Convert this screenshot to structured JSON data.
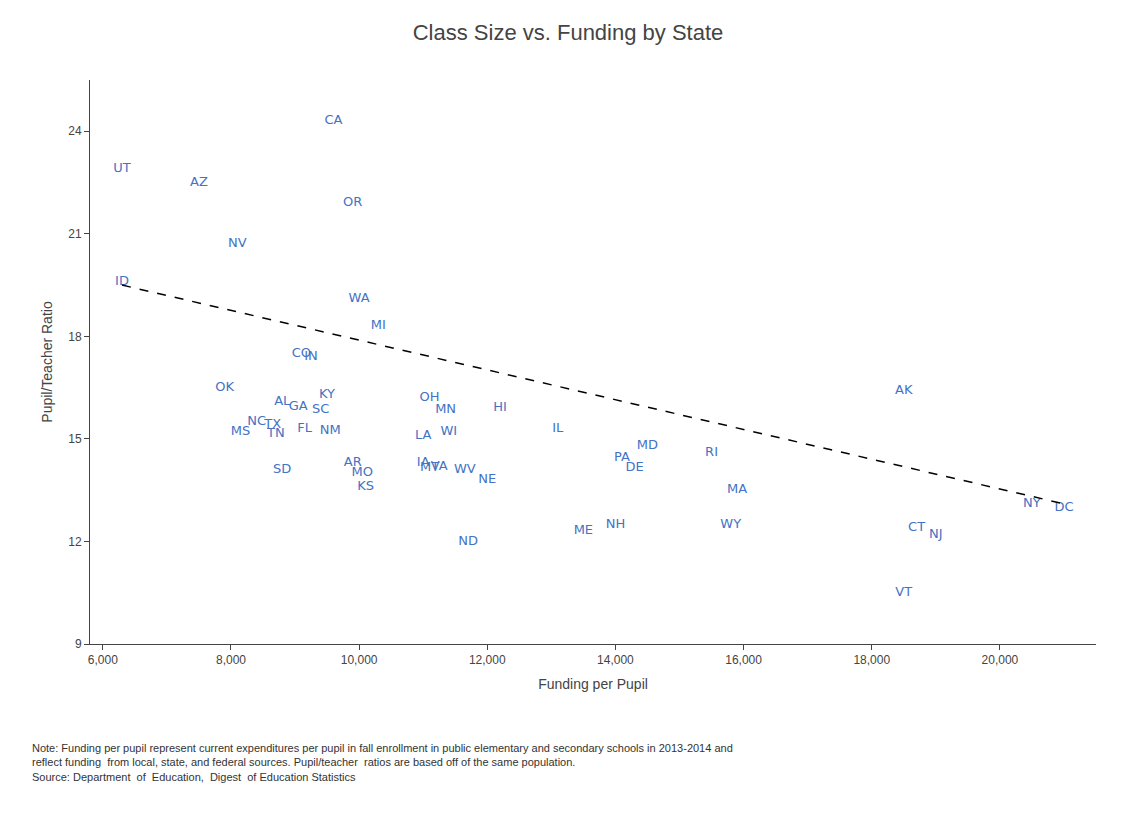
{
  "chart_data": {
    "type": "scatter",
    "title": "Class Size vs. Funding by State",
    "xlabel": "Funding per Pupil",
    "ylabel": "Pupil/Teacher Ratio",
    "annotations": [
      "Note: Funding per pupil represent current expenditures per pupil in fall enrollment in public elementary and secondary schools in 2013-2014 and\nreflect funding  from local, state, and federal sources. Pupil/teacher  ratios are based off of the same population.\nSource: Department  of  Education,  Digest  of Education Statistics"
    ],
    "xlim": [
      5800,
      21500
    ],
    "ylim": [
      9,
      25.5
    ],
    "xticks": [
      {
        "value": 6000,
        "label": "6,000"
      },
      {
        "value": 8000,
        "label": "8,000"
      },
      {
        "value": 10000,
        "label": "10,000"
      },
      {
        "value": 12000,
        "label": "12,000"
      },
      {
        "value": 14000,
        "label": "14,000"
      },
      {
        "value": 16000,
        "label": "16,000"
      },
      {
        "value": 18000,
        "label": "18,000"
      },
      {
        "value": 20000,
        "label": "20,000"
      }
    ],
    "yticks": [
      9,
      12,
      15,
      18,
      21,
      24
    ],
    "grid": false,
    "series": [
      {
        "type": "scatter",
        "marker": "text",
        "color": "#4472C4",
        "labels": [
          "UT",
          "AZ",
          "CA",
          "OR",
          "NV",
          "ID",
          "WA",
          "MI",
          "CO",
          "IN",
          "OK",
          "KY",
          "AL",
          "GA",
          "SC",
          "NC",
          "TX",
          "FL",
          "NM",
          "MS",
          "TN",
          "LA",
          "OH",
          "MN",
          "WI",
          "HI",
          "IL",
          "MD",
          "PA",
          "DE",
          "RI",
          "MA",
          "AK",
          "CT",
          "NY",
          "DC",
          "NJ",
          "VT",
          "NH",
          "WY",
          "ME",
          "ND",
          "NE",
          "KS",
          "MO",
          "AR",
          "SD",
          "IA",
          "VA",
          "MT",
          "WV"
        ],
        "x": [
          6300,
          7500,
          9600,
          9900,
          8100,
          6300,
          10000,
          10300,
          9100,
          9250,
          7900,
          9500,
          8800,
          9050,
          9400,
          8400,
          8650,
          9150,
          9550,
          8150,
          8700,
          11000,
          11100,
          11350,
          11400,
          12200,
          13100,
          14500,
          14100,
          14300,
          15500,
          15900,
          18500,
          18700,
          20500,
          21000,
          19000,
          18500,
          14000,
          15800,
          13500,
          11700,
          12000,
          10100,
          10050,
          9900,
          8800,
          11000,
          11250,
          11100,
          11650
        ],
        "values": [
          22.9,
          22.5,
          24.3,
          21.9,
          20.7,
          19.6,
          19.1,
          18.3,
          17.5,
          17.4,
          16.5,
          16.3,
          16.1,
          15.95,
          15.85,
          15.5,
          15.4,
          15.3,
          15.25,
          15.2,
          15.15,
          15.1,
          16.2,
          15.85,
          15.2,
          15.9,
          15.3,
          14.8,
          14.45,
          14.15,
          14.6,
          13.5,
          16.4,
          12.4,
          13.1,
          13.0,
          12.2,
          10.5,
          12.5,
          12.5,
          12.3,
          12.0,
          13.8,
          13.6,
          14.0,
          14.3,
          14.1,
          14.3,
          14.2,
          14.15,
          14.1
        ]
      },
      {
        "type": "line",
        "line_style": "dashed",
        "color": "black",
        "x": [
          6300,
          21000
        ],
        "values": [
          19.5,
          13.1
        ]
      }
    ]
  }
}
